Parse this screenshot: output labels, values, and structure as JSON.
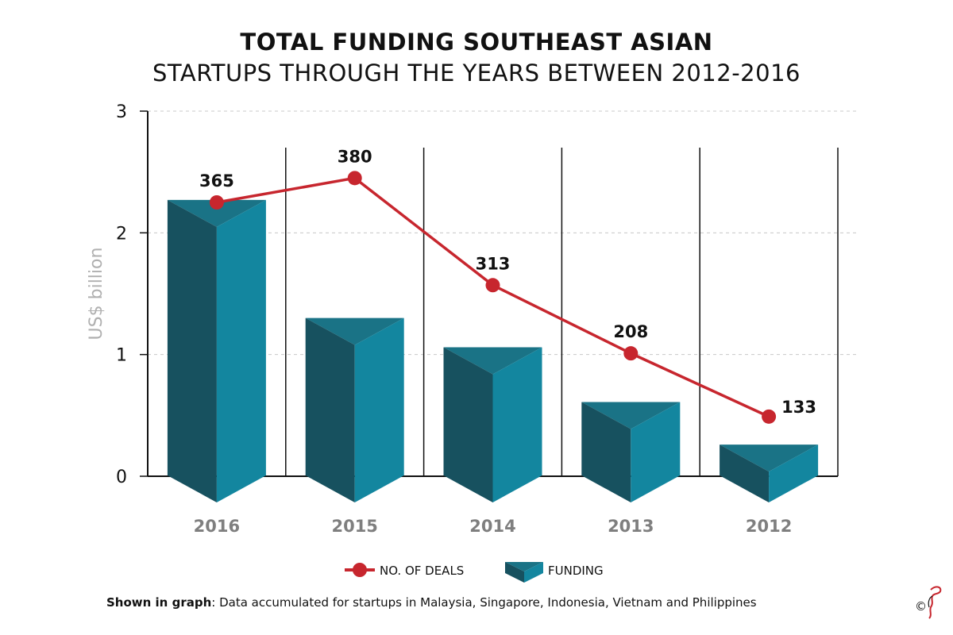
{
  "title_line1": "TOTAL FUNDING SOUTHEAST ASIAN",
  "title_line2": "STARTUPS THROUGH THE YEARS BETWEEN 2012-2016",
  "colors": {
    "bar_light": "#13869f",
    "bar_dark": "#17515f",
    "bar_top": "#1a7386",
    "line": "#c7262e",
    "grid": "#c8c8c8",
    "axis_label": "#b0b0b0",
    "tick_label": "#7f7f7f"
  },
  "footnote": {
    "bold": "Shown in graph",
    "text": ": Data accumulated for startups in Malaysia, Singapore, Indonesia, Vietnam and Philippines"
  },
  "copyright_symbol": "©",
  "chart_data": {
    "type": "bar",
    "categories": [
      "2016",
      "2015",
      "2014",
      "2013",
      "2012"
    ],
    "ylabel": "US$ billion",
    "ylim": [
      0,
      3
    ],
    "yticks": [
      0,
      1,
      2,
      3
    ],
    "grid": true,
    "legend_position": "bottom-center",
    "series": [
      {
        "name": "FUNDING",
        "kind": "bar",
        "values": [
          2.27,
          1.3,
          1.06,
          0.61,
          0.26
        ]
      },
      {
        "name": "NO. OF DEALS",
        "kind": "line",
        "values": [
          365,
          380,
          313,
          208,
          133
        ],
        "plotted_at": [
          2.25,
          2.45,
          1.57,
          1.01,
          0.49
        ]
      }
    ]
  }
}
